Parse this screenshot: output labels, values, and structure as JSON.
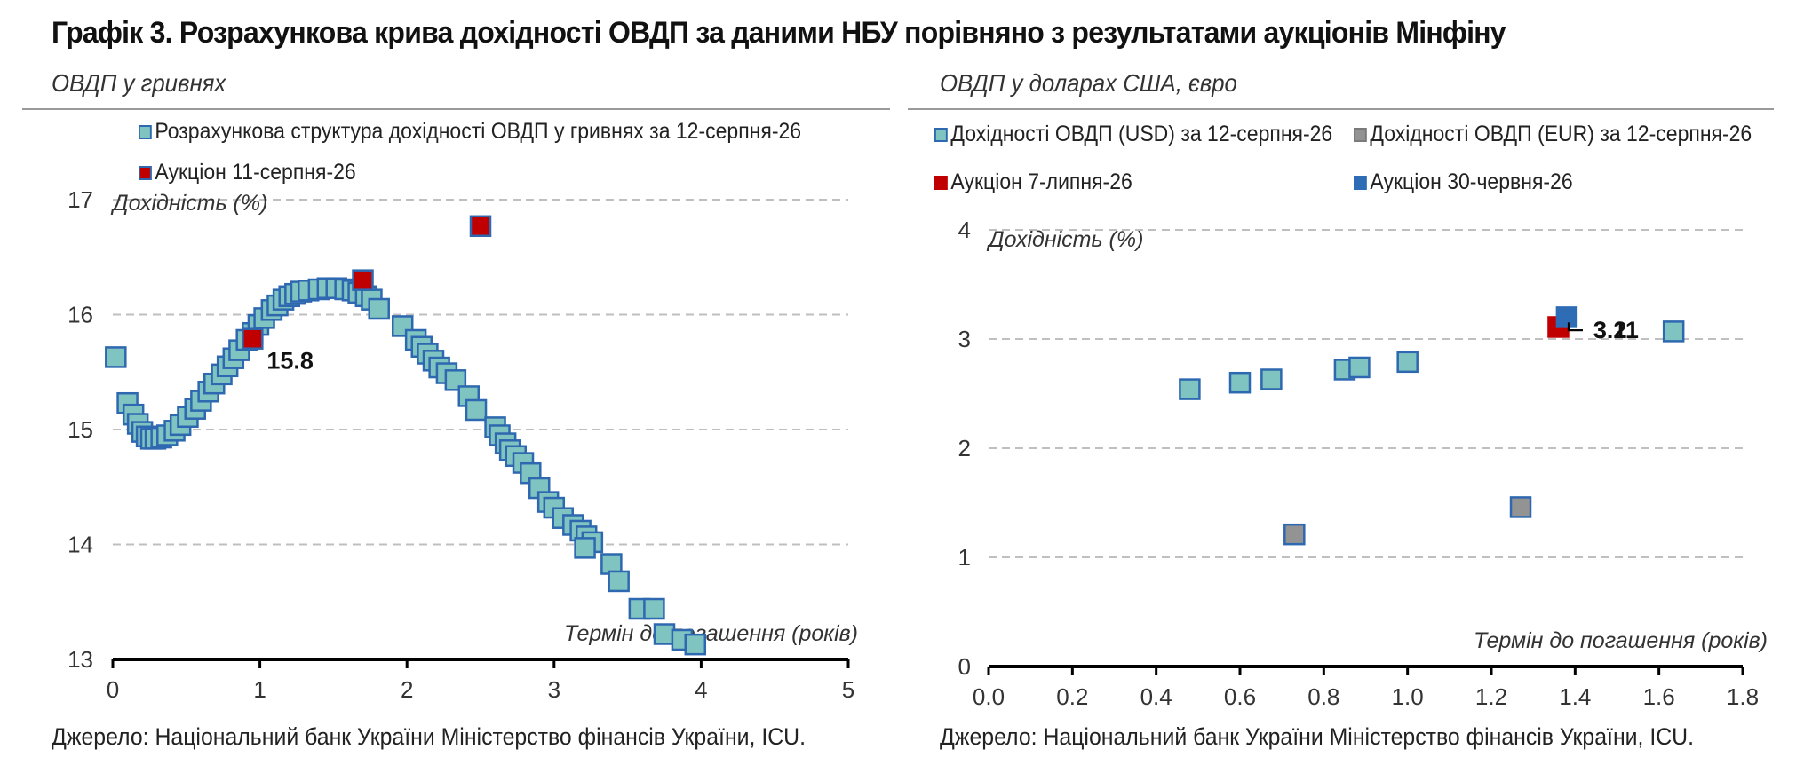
{
  "title": "Графік 3. Розрахункова крива дохідності ОВДП за даними НБУ порівняно з результатами аукціонів Мінфіну",
  "source": "Джерело: Національний банк України Міністерство фінансів України, ICU.",
  "colors": {
    "teal_fill": "#7fc4c0",
    "marker_border": "#2e68b0",
    "red": "#c00000",
    "grey": "#939393",
    "blue": "#2e6db5",
    "grid": "#bfbfbf"
  },
  "chart_data": [
    {
      "type": "scatter",
      "subtitle": "ОВДП у гривнях",
      "ylabel": "Дохідність (%)",
      "xlabel": "Термін до погашення (років)",
      "xlim": [
        0,
        5
      ],
      "ylim": [
        13,
        17
      ],
      "xticks": [
        "0",
        "1",
        "2",
        "3",
        "4",
        "5"
      ],
      "yticks": [
        "13",
        "14",
        "15",
        "16",
        "17"
      ],
      "grid": "horizontal dashed",
      "legend_position": "top",
      "series": [
        {
          "name": "Розрахункова структура дохідності ОВДП у гривнях за 12-серпня-26",
          "color": "#7fc4c0",
          "points": [
            [
              0.02,
              15.63
            ],
            [
              0.1,
              15.23
            ],
            [
              0.14,
              15.13
            ],
            [
              0.17,
              15.05
            ],
            [
              0.2,
              14.98
            ],
            [
              0.23,
              14.94
            ],
            [
              0.26,
              14.92
            ],
            [
              0.29,
              14.92
            ],
            [
              0.33,
              14.93
            ],
            [
              0.37,
              14.95
            ],
            [
              0.42,
              14.99
            ],
            [
              0.46,
              15.04
            ],
            [
              0.51,
              15.11
            ],
            [
              0.56,
              15.18
            ],
            [
              0.6,
              15.25
            ],
            [
              0.65,
              15.33
            ],
            [
              0.69,
              15.4
            ],
            [
              0.74,
              15.48
            ],
            [
              0.78,
              15.55
            ],
            [
              0.82,
              15.62
            ],
            [
              0.86,
              15.69
            ],
            [
              0.91,
              15.78
            ],
            [
              0.95,
              15.84
            ],
            [
              0.99,
              15.91
            ],
            [
              1.03,
              15.97
            ],
            [
              1.08,
              16.04
            ],
            [
              1.12,
              16.08
            ],
            [
              1.16,
              16.13
            ],
            [
              1.2,
              16.16
            ],
            [
              1.24,
              16.18
            ],
            [
              1.28,
              16.2
            ],
            [
              1.33,
              16.21
            ],
            [
              1.4,
              16.22
            ],
            [
              1.46,
              16.23
            ],
            [
              1.52,
              16.23
            ],
            [
              1.58,
              16.22
            ],
            [
              1.63,
              16.21
            ],
            [
              1.67,
              16.19
            ],
            [
              1.72,
              16.16
            ],
            [
              1.76,
              16.13
            ],
            [
              1.81,
              16.05
            ],
            [
              1.97,
              15.9
            ],
            [
              2.06,
              15.78
            ],
            [
              2.1,
              15.72
            ],
            [
              2.14,
              15.66
            ],
            [
              2.18,
              15.6
            ],
            [
              2.22,
              15.54
            ],
            [
              2.27,
              15.49
            ],
            [
              2.33,
              15.43
            ],
            [
              2.42,
              15.29
            ],
            [
              2.47,
              15.17
            ],
            [
              2.6,
              15.02
            ],
            [
              2.63,
              14.95
            ],
            [
              2.67,
              14.88
            ],
            [
              2.7,
              14.82
            ],
            [
              2.74,
              14.77
            ],
            [
              2.79,
              14.71
            ],
            [
              2.84,
              14.62
            ],
            [
              2.9,
              14.49
            ],
            [
              2.96,
              14.37
            ],
            [
              3.0,
              14.32
            ],
            [
              3.06,
              14.23
            ],
            [
              3.13,
              14.17
            ],
            [
              3.18,
              14.12
            ],
            [
              3.22,
              14.07
            ],
            [
              3.26,
              14.02
            ],
            [
              3.21,
              13.97
            ],
            [
              3.39,
              13.83
            ],
            [
              3.44,
              13.68
            ],
            [
              3.58,
              13.44
            ],
            [
              3.68,
              13.44
            ],
            [
              3.75,
              13.22
            ],
            [
              3.87,
              13.17
            ],
            [
              3.96,
              13.13
            ]
          ]
        },
        {
          "name": "Аукціон 11-серпня-26",
          "color": "#c00000",
          "points": [
            [
              0.95,
              15.79
            ],
            [
              1.7,
              16.3
            ],
            [
              2.5,
              16.77
            ]
          ],
          "labels": [
            {
              "x": 0.95,
              "y": 15.79,
              "text": "15.8"
            }
          ]
        }
      ]
    },
    {
      "type": "scatter",
      "subtitle": "ОВДП у доларах США, євро",
      "ylabel": "Дохідність (%)",
      "xlabel": "Термін до погашення (років)",
      "xlim": [
        0,
        1.8
      ],
      "ylim": [
        0,
        4
      ],
      "xticks": [
        "0.0",
        "0.2",
        "0.4",
        "0.6",
        "0.8",
        "1.0",
        "1.2",
        "1.4",
        "1.6",
        "1.8"
      ],
      "yticks": [
        "0",
        "1",
        "2",
        "3",
        "4"
      ],
      "grid": "horizontal dashed",
      "legend_position": "top",
      "series": [
        {
          "name": "Дохідності ОВДП (USD) за 12-серпня-26",
          "color": "#7fc4c0",
          "points": [
            [
              0.48,
              2.54
            ],
            [
              0.6,
              2.6
            ],
            [
              0.675,
              2.63
            ],
            [
              0.85,
              2.72
            ],
            [
              0.885,
              2.74
            ],
            [
              1.0,
              2.79
            ],
            [
              1.635,
              3.07
            ]
          ]
        },
        {
          "name": "Дохідності ОВДП (EUR) за 12-серпня-26",
          "color": "#939393",
          "points": [
            [
              0.73,
              1.21
            ],
            [
              1.27,
              1.46
            ]
          ]
        },
        {
          "name": "Аукціон 7-липня-26",
          "color": "#c00000",
          "points": [
            [
              1.36,
              3.11
            ]
          ],
          "labels": [
            {
              "x": 1.36,
              "y": 3.11,
              "text": "3.11"
            }
          ]
        },
        {
          "name": "Аукціон 30-червня-26",
          "color": "#2e6db5",
          "points": [
            [
              1.38,
              3.2
            ]
          ],
          "labels": [
            {
              "x": 1.38,
              "y": 3.2,
              "text": "3.2"
            }
          ]
        }
      ]
    }
  ]
}
